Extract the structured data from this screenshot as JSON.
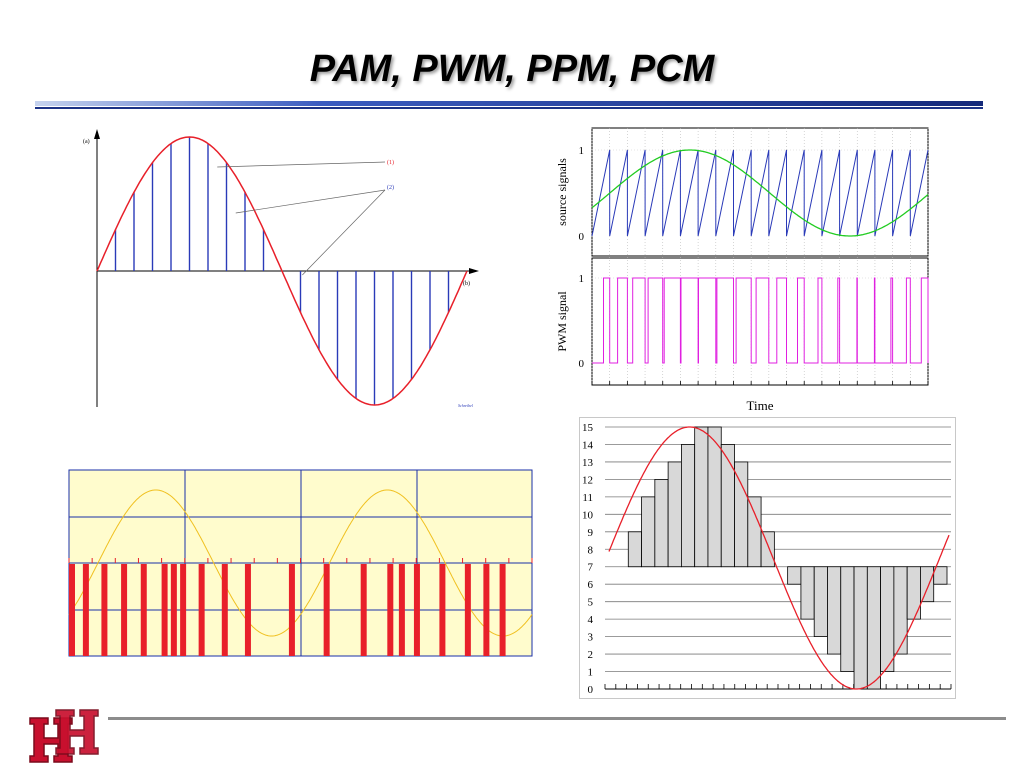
{
  "slide": {
    "title": "PAM, PWM, PPM, PCM"
  },
  "colors": {
    "signal_red": "#e8202a",
    "sample_blue": "#2a3ab8",
    "green": "#22cc22",
    "magenta": "#e020e0",
    "yellow": "#f0c020",
    "bg_yellow": "#fffccd"
  },
  "logo": {
    "text": "UH",
    "icon": "university-logo-icon"
  },
  "chart_data": [
    {
      "id": "pam",
      "type": "line",
      "title": "",
      "labels": {
        "a": "(a)",
        "b": "(b)",
        "callout1": "(1)",
        "callout2": "(2)",
        "credit": "Schreibel"
      },
      "x": [
        0,
        1,
        2,
        3,
        4,
        5,
        6,
        7,
        8,
        9,
        10,
        11,
        12,
        13,
        14,
        15,
        16,
        17,
        18,
        19,
        20
      ],
      "series": [
        {
          "values": [
            0,
            0.31,
            0.59,
            0.81,
            0.95,
            1.0,
            0.95,
            0.81,
            0.59,
            0.31,
            0,
            -0.31,
            -0.59,
            -0.81,
            -0.95,
            -1.0,
            -0.95,
            -0.81,
            -0.59,
            -0.31,
            0
          ]
        }
      ],
      "samples": [
        0.31,
        0.59,
        0.81,
        0.95,
        1.0,
        0.95,
        0.81,
        0.59,
        0.31,
        0,
        -0.31,
        -0.59,
        -0.81,
        -0.95,
        -1.0,
        -0.95,
        -0.81,
        -0.59,
        -0.31
      ],
      "ylim": [
        -1,
        1
      ]
    },
    {
      "id": "pwm-source",
      "type": "line",
      "ylabel": "source signals",
      "yticks": [
        "0",
        "1"
      ],
      "ylim": [
        0,
        1
      ],
      "sawtooth_periods": 19,
      "sine_min": 0.0,
      "sine_max": 1.0
    },
    {
      "id": "pwm-output",
      "type": "line",
      "ylabel": "PWM signal",
      "xlabel": "Time",
      "yticks": [
        "0",
        "1"
      ],
      "ylim": [
        0,
        1
      ],
      "duty_cycles": [
        0.35,
        0.55,
        0.7,
        0.83,
        0.92,
        0.97,
        0.98,
        0.94,
        0.85,
        0.72,
        0.55,
        0.38,
        0.22,
        0.1,
        0.02,
        0.03,
        0.1,
        0.22,
        0.38
      ]
    },
    {
      "id": "ppm",
      "type": "line",
      "pulse_positions": [
        0.0,
        0.12,
        0.28,
        0.45,
        0.62,
        0.8,
        0.88,
        0.96,
        1.12,
        1.32,
        1.52,
        1.9,
        2.2,
        2.52,
        2.75,
        2.85,
        2.98,
        3.2,
        3.42,
        3.58,
        3.72
      ],
      "ylim": [
        -1,
        1
      ]
    },
    {
      "id": "pcm",
      "type": "line",
      "yticks": [
        "0",
        "1",
        "2",
        "3",
        "4",
        "5",
        "6",
        "7",
        "8",
        "9",
        "10",
        "11",
        "12",
        "13",
        "14",
        "15"
      ],
      "ylim": [
        0,
        15
      ],
      "quantized": [
        7,
        9,
        11,
        12,
        13,
        14,
        15,
        15,
        14,
        13,
        11,
        9,
        7,
        6,
        4,
        3,
        2,
        1,
        0,
        0,
        1,
        2,
        4,
        5,
        6
      ],
      "x_ticks": 32
    }
  ]
}
